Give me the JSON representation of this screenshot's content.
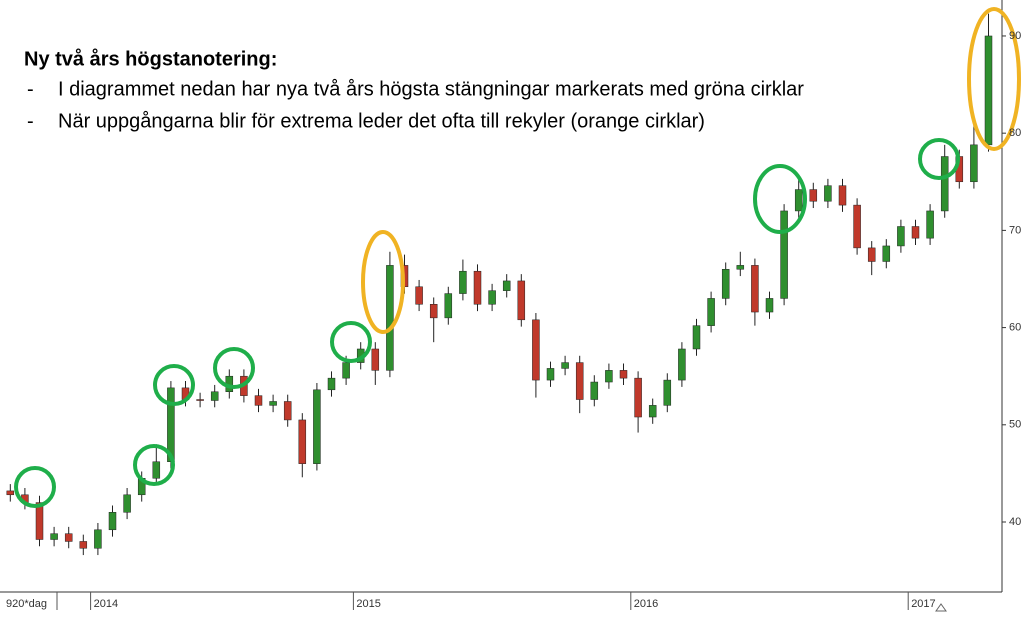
{
  "chart_data": {
    "type": "candlestick",
    "title": "Ny två års högstanotering:",
    "bullets": [
      {
        "marker": "-",
        "text": "I diagrammet nedan har nya två års högsta stängningar markerats med gröna cirklar"
      },
      {
        "marker": "-",
        "text": "När uppgångarna blir för extrema leder det ofta till rekyler (orange cirklar)"
      }
    ],
    "period_label": "920*dag",
    "categories": [
      null,
      null,
      null,
      null,
      null,
      null,
      "2014",
      null,
      null,
      null,
      null,
      null,
      null,
      null,
      null,
      null,
      null,
      null,
      null,
      null,
      null,
      null,
      null,
      null,
      "2015",
      null,
      null,
      null,
      null,
      null,
      null,
      null,
      null,
      null,
      null,
      null,
      null,
      null,
      null,
      null,
      null,
      null,
      null,
      "2016",
      null,
      null,
      null,
      null,
      null,
      null,
      null,
      null,
      null,
      null,
      null,
      null,
      null,
      null,
      null,
      null,
      null,
      null,
      "2017",
      null,
      null,
      null,
      null,
      null
    ],
    "open": [
      43.2,
      42.8,
      42.0,
      38.2,
      38.8,
      38.0,
      37.3,
      39.2,
      41.0,
      42.8,
      44.5,
      46.2,
      53.8,
      52.6,
      52.5,
      53.4,
      55.0,
      53.0,
      52.0,
      52.4,
      50.5,
      46.0,
      53.6,
      54.8,
      56.4,
      57.8,
      55.6,
      66.4,
      64.2,
      62.4,
      61.0,
      63.5,
      65.8,
      62.4,
      63.8,
      64.8,
      60.8,
      54.6,
      55.8,
      56.4,
      52.6,
      54.4,
      55.6,
      54.8,
      50.8,
      52.0,
      54.6,
      57.8,
      60.2,
      63.0,
      66.0,
      66.4,
      61.6,
      63.0,
      72.0,
      74.2,
      73.0,
      74.6,
      72.6,
      68.2,
      66.8,
      68.4,
      70.4,
      69.2,
      72.0,
      77.6,
      75.0,
      78.8
    ],
    "high": [
      43.9,
      43.5,
      42.7,
      39.5,
      39.5,
      38.7,
      39.9,
      41.7,
      43.5,
      45.2,
      48.0,
      54.5,
      54.5,
      53.3,
      54.1,
      55.7,
      55.7,
      53.7,
      53.1,
      53.1,
      51.2,
      54.3,
      55.5,
      57.1,
      58.5,
      58.5,
      67.8,
      67.5,
      64.9,
      63.1,
      64.2,
      67.0,
      66.5,
      64.5,
      65.5,
      65.5,
      61.5,
      56.5,
      57.1,
      57.1,
      55.1,
      56.3,
      56.3,
      55.5,
      52.7,
      55.3,
      58.5,
      60.9,
      63.7,
      66.7,
      67.8,
      67.1,
      63.7,
      72.7,
      75.3,
      74.9,
      75.3,
      75.3,
      73.3,
      68.9,
      69.1,
      71.1,
      71.1,
      72.7,
      78.8,
      78.3,
      81.8,
      92.3
    ],
    "low": [
      42.1,
      41.3,
      37.5,
      37.5,
      37.3,
      36.6,
      36.6,
      38.5,
      40.3,
      42.1,
      43.8,
      45.5,
      51.9,
      51.8,
      51.8,
      52.7,
      52.3,
      51.3,
      51.3,
      49.8,
      44.6,
      45.3,
      52.9,
      54.1,
      55.7,
      54.1,
      54.9,
      63.5,
      61.7,
      58.5,
      60.3,
      62.8,
      61.7,
      61.7,
      63.1,
      60.1,
      52.8,
      53.9,
      55.1,
      51.2,
      51.9,
      53.7,
      54.1,
      49.2,
      50.1,
      51.3,
      53.9,
      57.1,
      59.5,
      62.3,
      65.3,
      60.2,
      60.9,
      62.3,
      71.3,
      72.3,
      72.3,
      71.9,
      67.5,
      65.4,
      66.1,
      67.7,
      68.5,
      68.5,
      71.3,
      74.3,
      74.3,
      78.1
    ],
    "close": [
      42.8,
      42.0,
      38.2,
      38.8,
      38.0,
      37.3,
      39.2,
      41.0,
      42.8,
      44.5,
      46.2,
      53.8,
      52.6,
      52.5,
      53.4,
      55.0,
      53.0,
      52.0,
      52.4,
      50.5,
      46.0,
      53.6,
      54.8,
      56.4,
      57.8,
      55.6,
      66.4,
      64.2,
      62.4,
      61.0,
      63.5,
      65.8,
      62.4,
      63.8,
      64.8,
      60.8,
      54.6,
      55.8,
      56.4,
      52.6,
      54.4,
      55.6,
      54.8,
      50.8,
      52.0,
      54.6,
      57.8,
      60.2,
      63.0,
      66.0,
      66.4,
      61.6,
      63.0,
      72.0,
      74.2,
      73.0,
      74.6,
      72.6,
      68.2,
      66.8,
      68.4,
      70.4,
      69.2,
      72.0,
      77.6,
      75.0,
      78.8,
      90.0
    ],
    "up_color": "#2f8f2f",
    "down_color": "#c0392b",
    "wick_color": "#222222",
    "ylim": [
      32.8,
      93.7
    ],
    "yticks": [
      40,
      50,
      60,
      70,
      80,
      90
    ]
  }
}
